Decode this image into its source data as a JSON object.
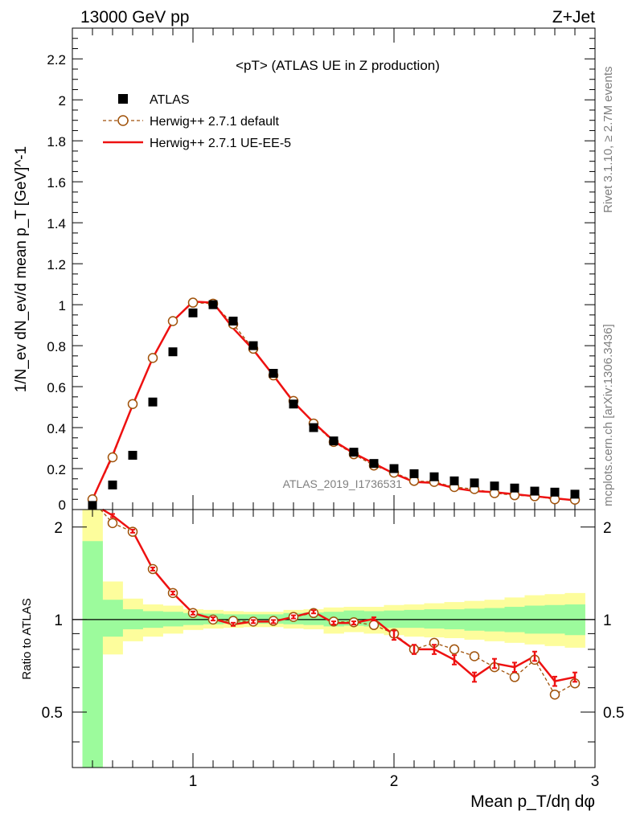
{
  "header": {
    "left": "13000 GeV pp",
    "right": "Z+Jet"
  },
  "side_labels": {
    "rivet": "Rivet 3.1.10, ≥ 2.7M events",
    "mcplots": "mcplots.cern.ch [arXiv:1306.3436]"
  },
  "colors": {
    "data": "#000000",
    "default": "#a0520a",
    "ueee5": "#ee1111",
    "band_inner": "#9cfb9c",
    "band_outer": "#fdfd9c"
  },
  "chart_data": [
    {
      "type": "scatter",
      "title": "<pT> (ATLAS UE in Z production)",
      "analysis_id": "ATLAS_2019_I1736531",
      "ylabel": "1/N_ev dN_ev/d mean p_T [GeV]^-1",
      "xlim": [
        0.4,
        3.0
      ],
      "ylim": [
        0,
        2.35
      ],
      "yticks": [
        "0",
        "0.2",
        "0.4",
        "0.6",
        "0.8",
        "1",
        "1.2",
        "1.4",
        "1.6",
        "1.8",
        "2",
        "2.2"
      ],
      "legend_position": "top-left",
      "x": [
        0.5,
        0.6,
        0.7,
        0.8,
        0.9,
        1.0,
        1.1,
        1.2,
        1.3,
        1.4,
        1.5,
        1.6,
        1.7,
        1.8,
        1.9,
        2.0,
        2.1,
        2.2,
        2.3,
        2.4,
        2.5,
        2.6,
        2.7,
        2.8,
        2.9
      ],
      "series": [
        {
          "name": "ATLAS",
          "marker": "square",
          "values": [
            0.02,
            0.12,
            0.265,
            0.525,
            0.77,
            0.96,
            1.0,
            0.92,
            0.8,
            0.665,
            0.515,
            0.4,
            0.335,
            0.28,
            0.225,
            0.2,
            0.175,
            0.16,
            0.14,
            0.13,
            0.115,
            0.105,
            0.09,
            0.085,
            0.075
          ]
        },
        {
          "name": "Herwig++ 2.7.1 default",
          "marker": "open-circle",
          "values": [
            0.05,
            0.255,
            0.515,
            0.74,
            0.92,
            1.01,
            1.005,
            0.905,
            0.785,
            0.655,
            0.53,
            0.42,
            0.33,
            0.27,
            0.215,
            0.18,
            0.14,
            0.135,
            0.11,
            0.1,
            0.08,
            0.07,
            0.065,
            0.05,
            0.048
          ]
        },
        {
          "name": "Herwig++ 2.7.1 UE-EE-5",
          "marker": "line",
          "values": [
            0.05,
            0.265,
            0.51,
            0.74,
            0.92,
            1.015,
            1.01,
            0.885,
            0.78,
            0.655,
            0.525,
            0.425,
            0.335,
            0.275,
            0.225,
            0.175,
            0.135,
            0.13,
            0.105,
            0.09,
            0.085,
            0.075,
            0.065,
            0.055,
            0.045
          ]
        }
      ]
    },
    {
      "type": "line",
      "ylabel": "Ratio to ATLAS",
      "xlabel": "Mean p_T/dη dφ",
      "xlim": [
        0.4,
        3.0
      ],
      "ylim": [
        0.33,
        2.28
      ],
      "xticks": [
        "1",
        "2",
        "3"
      ],
      "yticks": [
        "0.5",
        "1",
        "2"
      ],
      "x": [
        0.6,
        0.7,
        0.8,
        0.9,
        1.0,
        1.1,
        1.2,
        1.3,
        1.4,
        1.5,
        1.6,
        1.7,
        1.8,
        1.9,
        2.0,
        2.1,
        2.2,
        2.3,
        2.4,
        2.5,
        2.6,
        2.7,
        2.8,
        2.9
      ],
      "bands": {
        "bin_edges": [
          0.45,
          0.55,
          0.65,
          0.75,
          0.85,
          0.95,
          1.05,
          1.15,
          1.25,
          1.35,
          1.45,
          1.55,
          1.65,
          1.75,
          1.85,
          1.95,
          2.05,
          2.15,
          2.25,
          2.35,
          2.45,
          2.55,
          2.65,
          2.75,
          2.85,
          2.95
        ],
        "inner_low": [
          0.33,
          0.88,
          0.93,
          0.94,
          0.95,
          0.96,
          0.965,
          0.97,
          0.97,
          0.97,
          0.965,
          0.96,
          0.95,
          0.955,
          0.95,
          0.94,
          0.94,
          0.935,
          0.93,
          0.92,
          0.915,
          0.91,
          0.9,
          0.9,
          0.89
        ],
        "inner_high": [
          1.8,
          1.16,
          1.08,
          1.065,
          1.06,
          1.05,
          1.045,
          1.04,
          1.04,
          1.04,
          1.05,
          1.055,
          1.06,
          1.07,
          1.065,
          1.07,
          1.075,
          1.08,
          1.08,
          1.085,
          1.09,
          1.1,
          1.11,
          1.115,
          1.12
        ],
        "outer_low": [
          0.33,
          0.77,
          0.85,
          0.88,
          0.9,
          0.925,
          0.935,
          0.94,
          0.945,
          0.945,
          0.935,
          0.93,
          0.9,
          0.91,
          0.9,
          0.89,
          0.88,
          0.875,
          0.87,
          0.86,
          0.85,
          0.84,
          0.83,
          0.82,
          0.81
        ],
        "outer_high": [
          2.28,
          1.33,
          1.17,
          1.12,
          1.11,
          1.08,
          1.075,
          1.065,
          1.06,
          1.06,
          1.075,
          1.08,
          1.095,
          1.1,
          1.1,
          1.115,
          1.12,
          1.13,
          1.14,
          1.15,
          1.16,
          1.18,
          1.2,
          1.21,
          1.22
        ]
      },
      "series": [
        {
          "name": "Herwig++ 2.7.1 default",
          "values": [
            2.06,
            1.93,
            1.46,
            1.22,
            1.05,
            1.0,
            0.99,
            0.985,
            0.99,
            1.02,
            1.05,
            0.985,
            0.98,
            0.96,
            0.9,
            0.8,
            0.84,
            0.8,
            0.76,
            0.7,
            0.65,
            0.74,
            0.57,
            0.62
          ]
        },
        {
          "name": "Herwig++ 2.7.1 UE-EE-5",
          "values": [
            2.18,
            1.94,
            1.46,
            1.22,
            1.05,
            1.005,
            0.965,
            0.985,
            0.985,
            1.02,
            1.06,
            0.975,
            0.975,
            1.005,
            0.89,
            0.8,
            0.8,
            0.74,
            0.65,
            0.72,
            0.7,
            0.76,
            0.63,
            0.65
          ]
        }
      ]
    }
  ]
}
